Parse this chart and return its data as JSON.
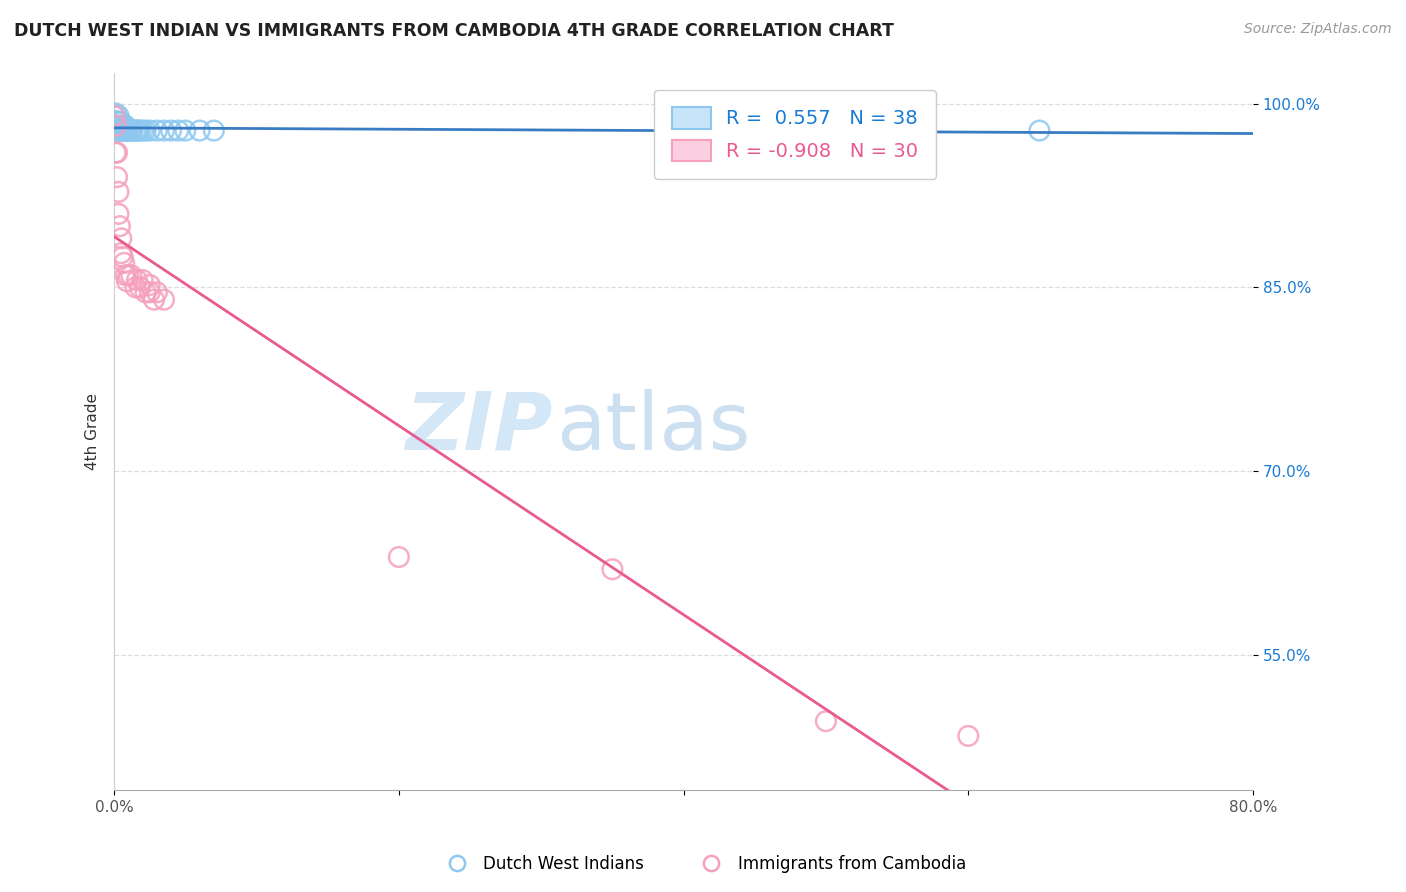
{
  "title": "DUTCH WEST INDIAN VS IMMIGRANTS FROM CAMBODIA 4TH GRADE CORRELATION CHART",
  "source": "Source: ZipAtlas.com",
  "ylabel": "4th Grade",
  "watermark_zip": "ZIP",
  "watermark_atlas": "atlas",
  "blue_label": "Dutch West Indians",
  "pink_label": "Immigrants from Cambodia",
  "blue_R": 0.557,
  "blue_N": 38,
  "pink_R": -0.908,
  "pink_N": 30,
  "blue_color": "#8ec8f0",
  "blue_line_color": "#3a7cc4",
  "pink_color": "#f5a0bc",
  "pink_line_color": "#e85a90",
  "blue_x": [
    0.0,
    0.001,
    0.001,
    0.001,
    0.002,
    0.002,
    0.003,
    0.003,
    0.003,
    0.004,
    0.004,
    0.005,
    0.005,
    0.006,
    0.006,
    0.007,
    0.008,
    0.008,
    0.009,
    0.01,
    0.011,
    0.012,
    0.013,
    0.015,
    0.016,
    0.017,
    0.018,
    0.02,
    0.022,
    0.025,
    0.03,
    0.035,
    0.04,
    0.045,
    0.05,
    0.06,
    0.07,
    0.65
  ],
  "blue_y": [
    0.99,
    0.992,
    0.98,
    0.986,
    0.982,
    0.978,
    0.978,
    0.985,
    0.99,
    0.978,
    0.982,
    0.978,
    0.985,
    0.978,
    0.982,
    0.978,
    0.978,
    0.982,
    0.978,
    0.978,
    0.978,
    0.978,
    0.978,
    0.978,
    0.978,
    0.978,
    0.978,
    0.978,
    0.978,
    0.978,
    0.978,
    0.978,
    0.978,
    0.978,
    0.978,
    0.978,
    0.978,
    0.978
  ],
  "pink_x": [
    0.0,
    0.001,
    0.001,
    0.002,
    0.002,
    0.003,
    0.003,
    0.004,
    0.005,
    0.005,
    0.006,
    0.007,
    0.008,
    0.009,
    0.01,
    0.012,
    0.015,
    0.016,
    0.018,
    0.02,
    0.022,
    0.025,
    0.025,
    0.028,
    0.03,
    0.035,
    0.2,
    0.35,
    0.5,
    0.6
  ],
  "pink_y": [
    0.99,
    0.982,
    0.96,
    0.96,
    0.94,
    0.928,
    0.91,
    0.9,
    0.89,
    0.878,
    0.875,
    0.87,
    0.86,
    0.855,
    0.86,
    0.86,
    0.85,
    0.856,
    0.85,
    0.856,
    0.846,
    0.846,
    0.852,
    0.84,
    0.846,
    0.84,
    0.63,
    0.62,
    0.496,
    0.484
  ],
  "xlim": [
    0.0,
    0.8
  ],
  "ylim": [
    0.44,
    1.025
  ],
  "yticks": [
    0.55,
    0.7,
    0.85,
    1.0
  ],
  "ytick_labels": [
    "55.0%",
    "70.0%",
    "85.0%",
    "100.0%"
  ],
  "xticks": [
    0.0,
    0.2,
    0.4,
    0.6,
    0.8
  ],
  "xtick_labels": [
    "0.0%",
    "",
    "",
    "",
    "80.0%"
  ],
  "grid_color": "#dddddd",
  "background_color": "#ffffff"
}
